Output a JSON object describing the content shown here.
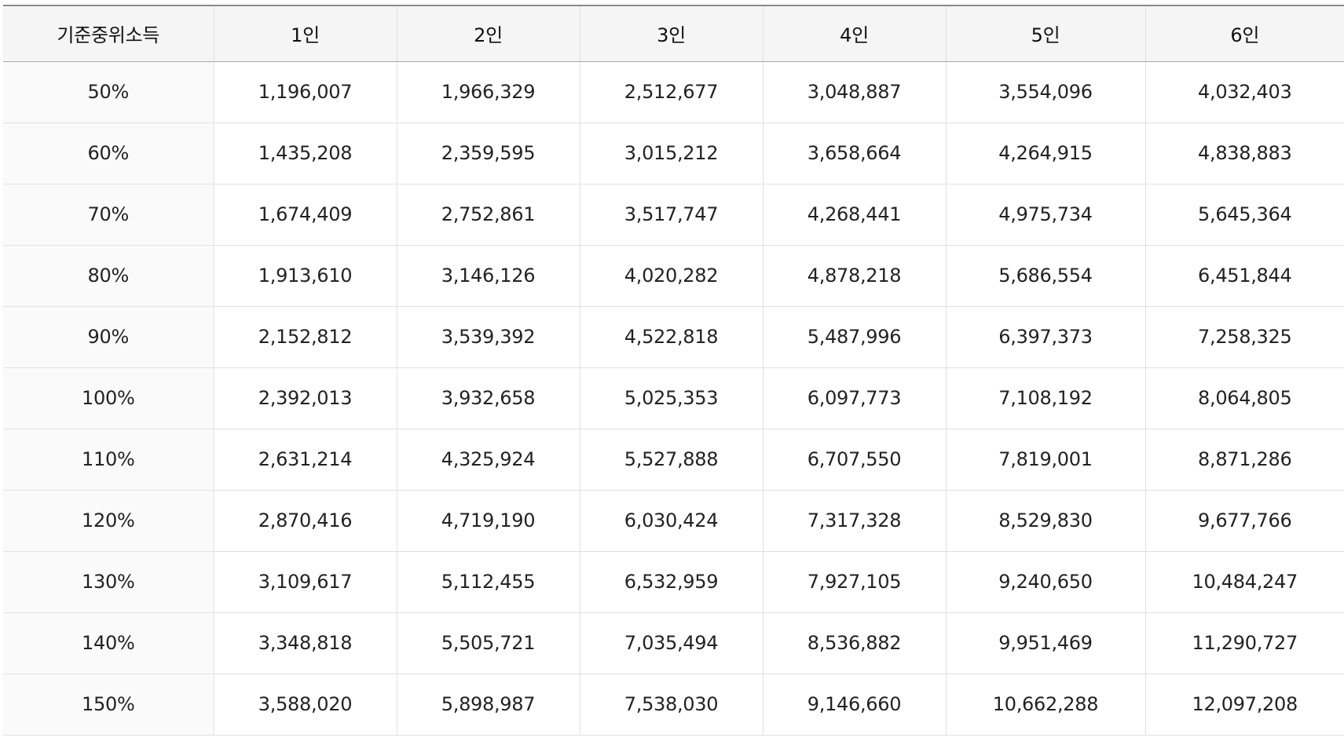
{
  "table": {
    "headers": [
      "기준중위소득",
      "1인",
      "2인",
      "3인",
      "4인",
      "5인",
      "6인"
    ],
    "rows": [
      [
        "50%",
        "1,196,007",
        "1,966,329",
        "2,512,677",
        "3,048,887",
        "3,554,096",
        "4,032,403"
      ],
      [
        "60%",
        "1,435,208",
        "2,359,595",
        "3,015,212",
        "3,658,664",
        "4,264,915",
        "4,838,883"
      ],
      [
        "70%",
        "1,674,409",
        "2,752,861",
        "3,517,747",
        "4,268,441",
        "4,975,734",
        "5,645,364"
      ],
      [
        "80%",
        "1,913,610",
        "3,146,126",
        "4,020,282",
        "4,878,218",
        "5,686,554",
        "6,451,844"
      ],
      [
        "90%",
        "2,152,812",
        "3,539,392",
        "4,522,818",
        "5,487,996",
        "6,397,373",
        "7,258,325"
      ],
      [
        "100%",
        "2,392,013",
        "3,932,658",
        "5,025,353",
        "6,097,773",
        "7,108,192",
        "8,064,805"
      ],
      [
        "110%",
        "2,631,214",
        "4,325,924",
        "5,527,888",
        "6,707,550",
        "7,819,001",
        "8,871,286"
      ],
      [
        "120%",
        "2,870,416",
        "4,719,190",
        "6,030,424",
        "7,317,328",
        "8,529,830",
        "9,677,766"
      ],
      [
        "130%",
        "3,109,617",
        "5,112,455",
        "6,532,959",
        "7,927,105",
        "9,240,650",
        "10,484,247"
      ],
      [
        "140%",
        "3,348,818",
        "5,505,721",
        "7,035,494",
        "8,536,882",
        "9,951,469",
        "11,290,727"
      ],
      [
        "150%",
        "3,588,020",
        "5,898,987",
        "7,538,030",
        "9,146,660",
        "10,662,288",
        "12,097,208"
      ]
    ]
  },
  "colors": {
    "header_bg": "#f5f5f5",
    "first_col_bg": "#fafafa",
    "border": "#e1e1e1",
    "header_top_border": "#8a8a8a"
  }
}
